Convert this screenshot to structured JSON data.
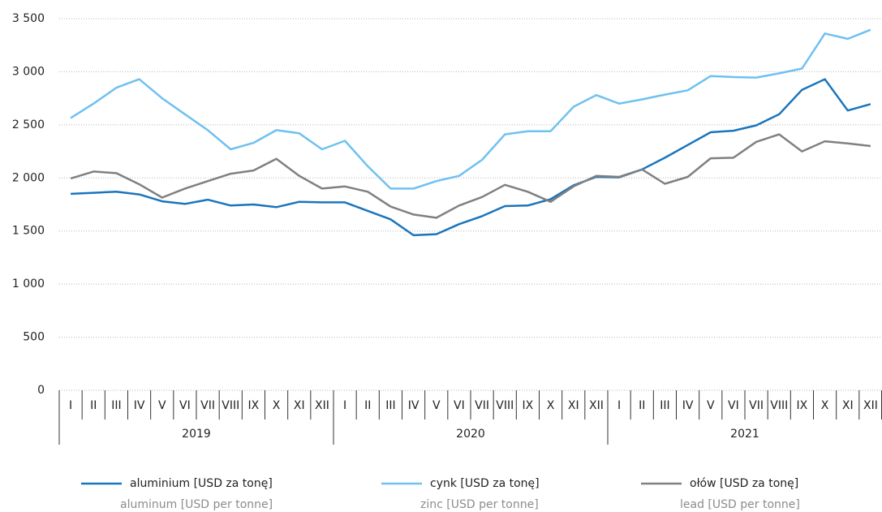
{
  "chart_data": {
    "type": "line",
    "categories": [
      "I",
      "II",
      "III",
      "IV",
      "V",
      "VI",
      "VII",
      "VIII",
      "IX",
      "X",
      "XI",
      "XII",
      "I",
      "II",
      "III",
      "IV",
      "V",
      "VI",
      "VII",
      "VIII",
      "IX",
      "X",
      "XI",
      "XII",
      "I",
      "II",
      "III",
      "IV",
      "V",
      "VI",
      "VII",
      "VIII",
      "IX",
      "X",
      "XI",
      "XII"
    ],
    "groups": [
      "2019",
      "2020",
      "2021"
    ],
    "series": [
      {
        "name": "aluminium [USD za tonę]",
        "name_en": "aluminum [USD per tonne]",
        "color": "#1a75bc",
        "values": [
          1850,
          1860,
          1870,
          1845,
          1780,
          1755,
          1795,
          1740,
          1750,
          1725,
          1775,
          1770,
          1770,
          1690,
          1610,
          1460,
          1470,
          1565,
          1640,
          1735,
          1740,
          1800,
          1930,
          2010,
          2005,
          2080,
          2190,
          2310,
          2430,
          2445,
          2495,
          2600,
          2830,
          2930,
          2635,
          2695
        ]
      },
      {
        "name": "cynk [USD za tonę]",
        "name_en": "zinc [USD per tonne]",
        "color": "#6ec1f0",
        "values": [
          2565,
          2700,
          2850,
          2930,
          2750,
          2600,
          2450,
          2270,
          2330,
          2450,
          2420,
          2270,
          2350,
          2110,
          1900,
          1900,
          1970,
          2020,
          2170,
          2410,
          2440,
          2440,
          2670,
          2780,
          2700,
          2740,
          2785,
          2825,
          2960,
          2950,
          2945,
          2985,
          3030,
          3360,
          3310,
          3395
        ]
      },
      {
        "name": "ołów [USD za tonę]",
        "name_en": "lead [USD per tonne]",
        "color": "#808080",
        "values": [
          1995,
          2060,
          2045,
          1940,
          1815,
          1900,
          1970,
          2040,
          2070,
          2180,
          2020,
          1900,
          1920,
          1870,
          1730,
          1655,
          1625,
          1740,
          1820,
          1935,
          1870,
          1775,
          1920,
          2020,
          2010,
          2080,
          1945,
          2010,
          2185,
          2190,
          2340,
          2410,
          2250,
          2345,
          2325,
          2300
        ]
      }
    ],
    "ylim": [
      0,
      3500
    ],
    "yticks": [
      0,
      500,
      {
        "value": 1000,
        "label": "1 000"
      },
      {
        "value": 1500,
        "label": "1 500"
      },
      {
        "value": 2000,
        "label": "2 000"
      },
      {
        "value": 2500,
        "label": "2 500"
      },
      {
        "value": 3000,
        "label": "3 000"
      },
      {
        "value": 3500,
        "label": "3 500"
      }
    ],
    "grid": true
  }
}
